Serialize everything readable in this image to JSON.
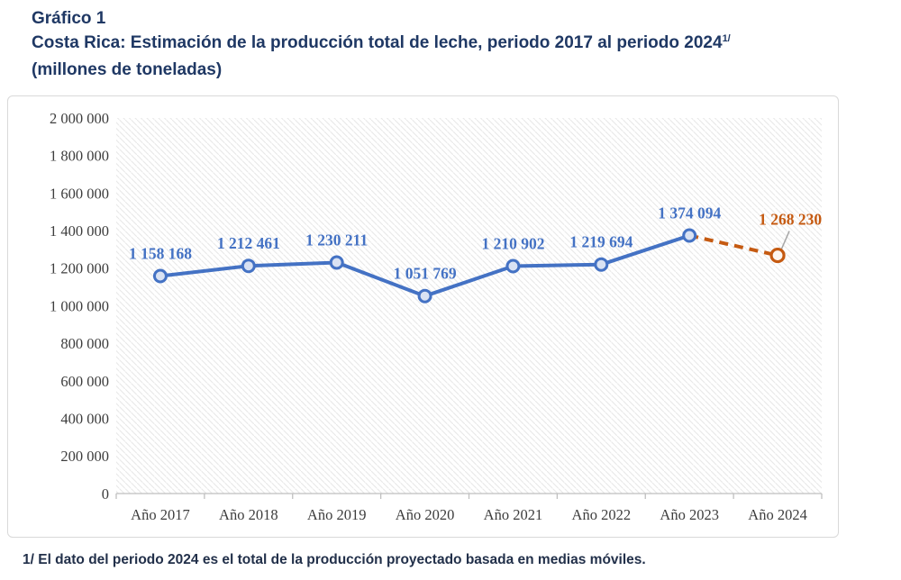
{
  "title": {
    "label": "Gráfico 1",
    "subtitle": "Costa Rica: Estimación de la producción total de leche, periodo 2017 al periodo 2024",
    "subtitle_superscript": "1/",
    "unit_line": "(millones de toneladas)",
    "color": "#1F3864"
  },
  "footnote": {
    "text": "1/ El dato del periodo 2024 es el total de la producción proyectado basada en medias móviles."
  },
  "chart_data": {
    "type": "line",
    "title": "Costa Rica: Estimación de la producción total de leche, periodo 2017 al periodo 2024 (millones de toneladas)",
    "categories": [
      "Año 2017",
      "Año 2018",
      "Año 2019",
      "Año 2020",
      "Año 2021",
      "Año 2022",
      "Año 2023",
      "Año 2024"
    ],
    "values": [
      1158168,
      1212461,
      1230211,
      1051769,
      1210902,
      1219694,
      1374094,
      1268230
    ],
    "value_labels": [
      "1 158 168",
      "1 212 461",
      "1 230 211",
      "1 051 769",
      "1 210 902",
      "1 219 694",
      "1 374 094",
      "1 268 230"
    ],
    "projected_index": 7,
    "projected_note": "El punto de Año 2024 es proyectado (línea discontinua naranja)",
    "xlabel": "",
    "ylabel": "",
    "ylim": [
      0,
      2000000
    ],
    "ytick_step": 200000,
    "ytick_labels": [
      "2 000 000",
      "1 800 000",
      "1 600 000",
      "1 400 000",
      "1 200 000",
      "1 000 000",
      "800 000",
      "600 000",
      "400 000",
      "200 000",
      "0"
    ],
    "grid": false,
    "legend": "none",
    "plot_background": "diagonal-hatch",
    "colors": {
      "series": "#4472C4",
      "marker_fill": "#D9E2F3",
      "projected": "#C55A11",
      "projected_marker_fill": "#FDF6F0",
      "axis": "#BFBFBF",
      "tick_text": "#3D3D3D",
      "hatch": "#E8E8E8",
      "leader": "#A6A6A6"
    }
  }
}
